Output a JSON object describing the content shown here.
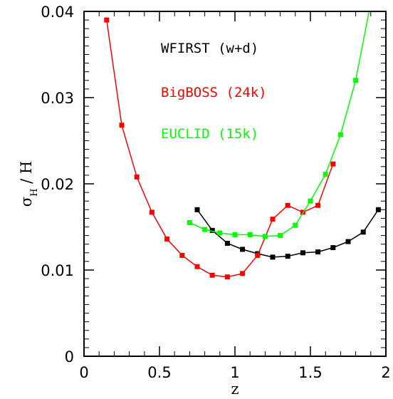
{
  "chart_data": {
    "type": "line",
    "title": "",
    "xlabel": "z",
    "ylabel": {
      "base": "σ",
      "sub": "H",
      "rest": " / H"
    },
    "xlim": [
      0,
      2
    ],
    "ylim": [
      0,
      0.04
    ],
    "xticks": [
      "0",
      "0.5",
      "1",
      "1.5",
      "2"
    ],
    "yticks": [
      "0",
      "0.01",
      "0.02",
      "0.03",
      "0.04"
    ],
    "grid": false,
    "legend_position": "top-center",
    "series": [
      {
        "name": "WFIRST (w+d)",
        "color": "#000000",
        "x": [
          0.75,
          0.85,
          0.95,
          1.05,
          1.15,
          1.25,
          1.35,
          1.45,
          1.55,
          1.65,
          1.75,
          1.85,
          1.95
        ],
        "y": [
          0.017,
          0.0146,
          0.0131,
          0.0124,
          0.0119,
          0.0115,
          0.0116,
          0.012,
          0.0121,
          0.0126,
          0.0133,
          0.0144,
          0.017
        ]
      },
      {
        "name": "BigBOSS (24k)",
        "color": "#ff0000",
        "x": [
          0.15,
          0.25,
          0.35,
          0.45,
          0.55,
          0.65,
          0.75,
          0.85,
          0.95,
          1.05,
          1.15,
          1.25,
          1.35,
          1.45,
          1.55,
          1.65
        ],
        "y": [
          0.039,
          0.0268,
          0.0208,
          0.0167,
          0.0136,
          0.0117,
          0.0104,
          0.0094,
          0.0092,
          0.0096,
          0.0117,
          0.0159,
          0.0175,
          0.0167,
          0.0175,
          0.0223
        ]
      },
      {
        "name": "EUCLID (15k)",
        "color": "#00ff00",
        "x": [
          0.7,
          0.8,
          0.9,
          1.0,
          1.1,
          1.2,
          1.3,
          1.4,
          1.5,
          1.6,
          1.7,
          1.8,
          1.9
        ],
        "y": [
          0.0155,
          0.0147,
          0.0143,
          0.0141,
          0.0141,
          0.0139,
          0.014,
          0.0152,
          0.018,
          0.0211,
          0.0257,
          0.032,
          0.041
        ]
      }
    ]
  }
}
